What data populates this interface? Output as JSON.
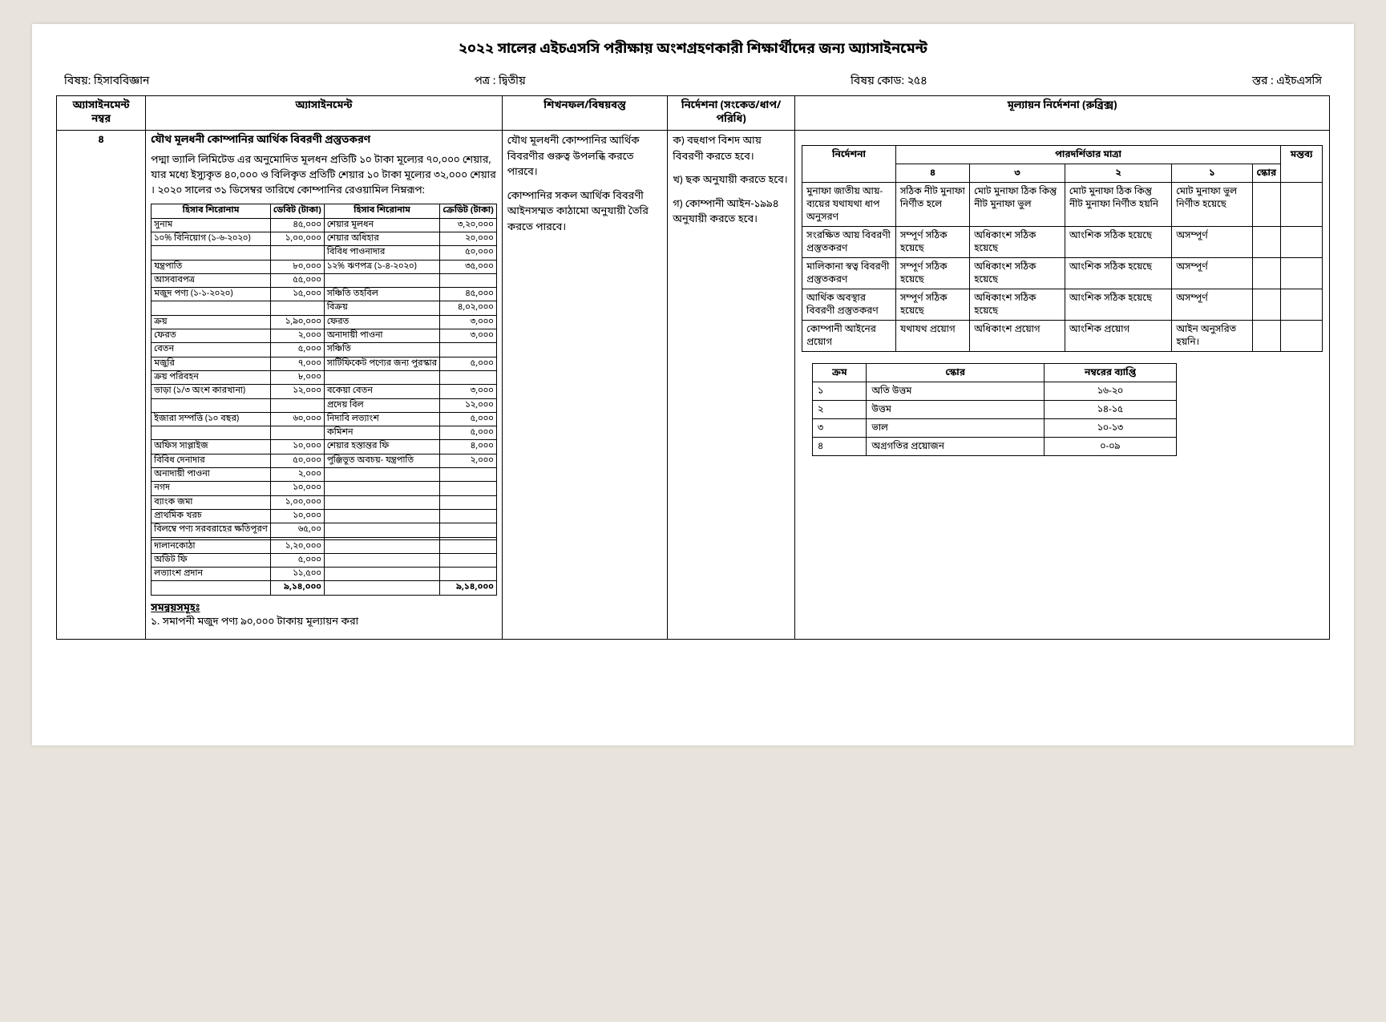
{
  "title": "২০২২ সালের এইচএসসি পরীক্ষায় অংশগ্রহণকারী শিক্ষার্থীদের জন্য অ্যাসাইনমেন্ট",
  "meta": {
    "subject_label": "বিষয়: হিসাববিজ্ঞান",
    "paper_label": "পত্র : দ্বিতীয়",
    "code_label": "বিষয় কোড: ২৫৪",
    "level_label": "স্তর : এইচএসসি"
  },
  "headers": {
    "no": "অ্যাসাইনমেন্ট নম্বর",
    "assignment": "অ্যাসাইনমেন্ট",
    "outcome": "শিখনফল/বিষয়বস্তু",
    "instruction": "নির্দেশনা (সংকেত/ধাপ/পরিধি)",
    "rubric": "মূল্যায়ন নির্দেশনা (রুব্রিক্স)"
  },
  "assignment_no": "৪",
  "assignment": {
    "heading": "যৌথ মূলধনী কোম্পানির আর্থিক বিবরণী প্রস্তুতকরণ",
    "para1": "পদ্মা ভ্যালি লিমিটেড এর অনুমোদিত মূলধন প্রতিটি ১০ টাকা মূল্যের ৭০,০০০ শেয়ার, যার মধ্যে ইস্যুকৃত ৪০,০০০ ও বিলিকৃত প্রতিটি শেয়ার ১০ টাকা মূল্যের ৩২,০০০ শেয়ার । ২০২০ সালের ৩১ ডিসেম্বর তারিখে কোম্পানির রেওয়ামিল নিম্নরূপ:",
    "ledger_headers": [
      "হিসাব শিরোনাম",
      "ডেবিট (টাকা)",
      "হিসাব শিরোনাম",
      "ক্রেডিট (টাকা)"
    ],
    "ledger_rows": [
      [
        "সুনাম",
        "৪৫,০০০",
        "শেয়ার মূলধন",
        "৩,২০,০০০"
      ],
      [
        "১০% বিনিয়োগ (১-৬-২০২০)",
        "১,০০,০০০",
        "শেয়ার অধিহার",
        "২০,০০০"
      ],
      [
        "",
        "",
        "বিবিধ পাওনাদার",
        "৫০,০০০"
      ],
      [
        "যন্ত্রপাতি",
        "৮০,০০০",
        "১২% ঋণপত্র (১-৪-২০২০)",
        "৩৫,০০০"
      ],
      [
        "আসবাবপত্র",
        "৫৫,০০০",
        "",
        ""
      ],
      [
        "মজুদ পণ্য (১-১-২০২০)",
        "১৫,০০০",
        "সঞ্চিতি তহবিল",
        "৪৫,০০০"
      ],
      [
        "",
        "",
        "বিক্রয়",
        "৪,০২,০০০"
      ],
      [
        "ক্রয়",
        "১,৯০,০০০",
        "ফেরত",
        "৩,০০০"
      ],
      [
        "ফেরত",
        "২,০০০",
        "অনাদায়ী পাওনা",
        "৩,০০০"
      ],
      [
        "বেতন",
        "৫,০০০",
        "সঞ্চিতি",
        ""
      ],
      [
        "মজুরি",
        "৭,০০০",
        "সার্টিফিকেট পণ্যের জন্য পুরস্কার",
        "৫,০০০"
      ],
      [
        "ক্রয় পরিবহন",
        "৮,০০০",
        "",
        ""
      ],
      [
        "ভাড়া (১/৩ অংশ কারখানা)",
        "১২,০০০",
        "বকেয়া বেতন",
        "৩,০০০"
      ],
      [
        "",
        "",
        "প্রদেয় বিল",
        "১২,০০০"
      ],
      [
        "ইজারা সম্পত্তি (১০ বছর)",
        "৬০,০০০",
        "নিদাবি লভ্যাংশ",
        "৫,০০০"
      ],
      [
        "",
        "",
        "কমিশন",
        "৫,০০০"
      ],
      [
        "অফিস সাপ্লাইজ",
        "১০,০০০",
        "শেয়ার হস্তান্তর ফি",
        "৪,০০০"
      ],
      [
        "বিবিধ দেনাদার",
        "৫০,০০০",
        "পুঞ্জিভূত অবচয়- যন্ত্রপাতি",
        "২,০০০"
      ],
      [
        "অনাদায়ী পাওনা",
        "২,০০০",
        "",
        ""
      ],
      [
        "নগদ",
        "১০,০০০",
        "",
        ""
      ],
      [
        "ব্যাংক জমা",
        "১,০০,০০০",
        "",
        ""
      ],
      [
        "প্রাথমিক খরচ",
        "১০,০০০",
        "",
        ""
      ],
      [
        "বিলম্বে পণ্য সরবরাহের ক্ষতিপূরণ",
        "৬৫,০০",
        "",
        ""
      ],
      [
        "",
        "",
        "",
        ""
      ],
      [
        "দালানকোঠা",
        "১,২০,০০০",
        "",
        ""
      ],
      [
        "অডিট ফি",
        "৫,০০০",
        "",
        ""
      ],
      [
        "লভ্যাংশ প্রদান",
        "১১,৫০০",
        "",
        ""
      ]
    ],
    "ledger_total": [
      "",
      "৯,১৪,০০০",
      "",
      "৯,১৪,০০০"
    ],
    "adjustments_heading": "সমন্বয়সমূহঃ",
    "adjustment_1": "১.    সমাপনী মজুদ পণ্য ৯০,০০০ টাকায় মূল্যায়ন করা"
  },
  "outcome": {
    "p1": "যৌথ মূলধনী কোম্পানির আর্থিক বিবরণীর গুরুত্ব উপলব্ধি করতে পারবে।",
    "p2": "কোম্পানির সকল আর্থিক বিবরণী আইনসম্মত কাঠামো অনুযায়ী তৈরি করতে পারবে।"
  },
  "instruction": {
    "p1": "ক) বহুধাপ বিশদ আয় বিবরণী করতে হবে।",
    "p2": "খ) ছক অনুযায়ী করতে হবে।",
    "p3": "গ) কোম্পানী আইন-১৯৯৪ অনুযায়ী করতে হবে।"
  },
  "rubric": {
    "head_criterion": "নির্দেশনা",
    "head_scale": "পারদর্শিতার মাত্রা",
    "head_remark": "মন্তব্য",
    "scale_nums": [
      "৪",
      "৩",
      "২",
      "১",
      "স্কোর"
    ],
    "rows": [
      {
        "crit": "মুনাফা জাতীয় আয়-ব্যয়ের যথাযথা ধাপ অনুসরণ",
        "cells": [
          "সঠিক নীট মুনাফা নির্ণীত হলে",
          "মোট মুনাফা ঠিক কিন্তু নীট মুনাফা ভুল",
          "মোট মুনাফা ঠিক কিন্তু নীট মুনাফা নির্ণীত হয়নি",
          "মোট মুনাফা ভুল নির্ণীত হয়েছে"
        ]
      },
      {
        "crit": "সংরক্ষিত আয় বিবরণী প্রস্তুতকরণ",
        "cells": [
          "সম্পূর্ণ সঠিক হয়েছে",
          "অধিকাংশ সঠিক হয়েছে",
          "আংশিক সঠিক হয়েছে",
          "অসম্পূর্ণ"
        ]
      },
      {
        "crit": "মালিকানা স্বত্ব বিবরণী প্রস্তুতকরণ",
        "cells": [
          "সম্পূর্ণ সঠিক হয়েছে",
          "অধিকাংশ সঠিক হয়েছে",
          "আংশিক সঠিক হয়েছে",
          "অসম্পূর্ণ"
        ]
      },
      {
        "crit": "আর্থিক অবস্থার বিবরণী প্রস্তুতকরণ",
        "cells": [
          "সম্পূর্ণ সঠিক হয়েছে",
          "অধিকাংশ সঠিক হয়েছে",
          "আংশিক সঠিক হয়েছে",
          "অসম্পূর্ণ"
        ]
      },
      {
        "crit": "কোম্পানী আইনের প্রয়োগ",
        "cells": [
          "যথাযথ প্রয়োগ",
          "অধিকাংশ প্রয়োগ",
          "আংশিক প্রয়োগ",
          "আইন অনুসরিত হয়নি।"
        ]
      }
    ]
  },
  "score": {
    "headers": [
      "ক্রম",
      "স্কোর",
      "নম্বরের ব্যাপ্তি"
    ],
    "rows": [
      [
        "১",
        "অতি উত্তম",
        "১৬-২০"
      ],
      [
        "২",
        "উত্তম",
        "১৪-১৫"
      ],
      [
        "৩",
        "ভাল",
        "১০-১৩"
      ],
      [
        "৪",
        "অগ্রগতির প্রয়োজন",
        "০-০৯"
      ]
    ]
  }
}
